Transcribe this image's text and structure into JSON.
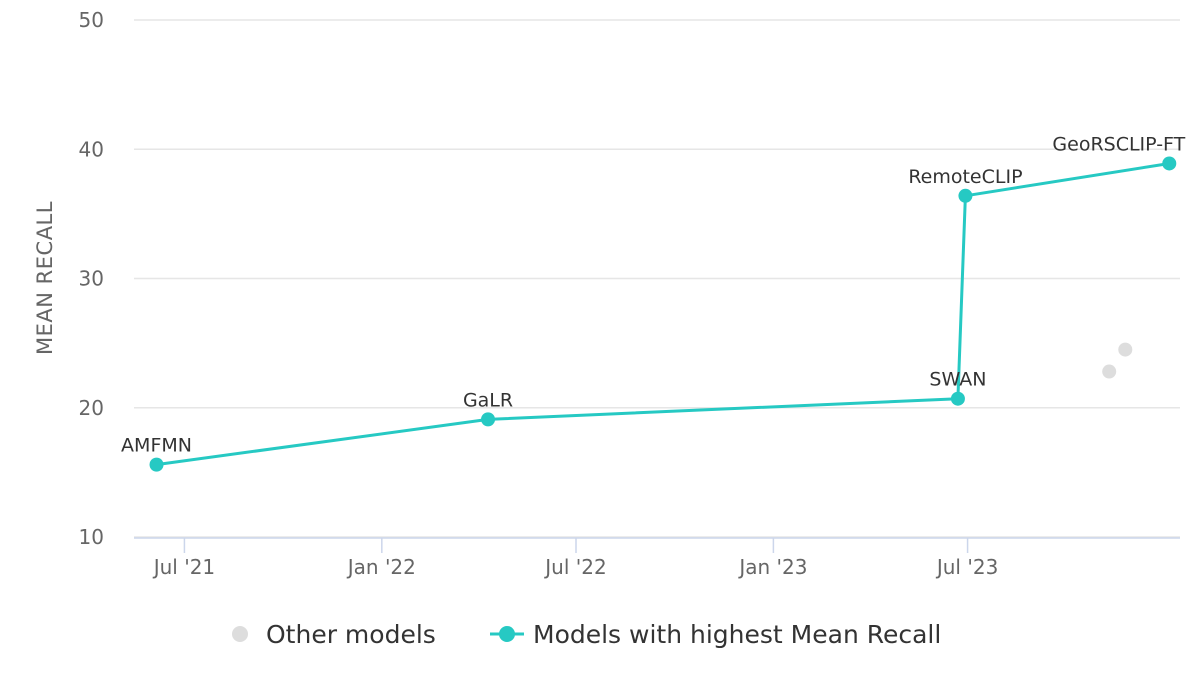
{
  "chart_data": {
    "type": "line",
    "ylabel": "MEAN RECALL",
    "ylim": [
      10,
      50
    ],
    "y_ticks": [
      10,
      20,
      30,
      40,
      50
    ],
    "xlim": [
      "2021-05-15",
      "2024-01-15"
    ],
    "x_ticks": [
      {
        "date": "2021-07-01",
        "label": "Jul '21"
      },
      {
        "date": "2022-01-01",
        "label": "Jan '22"
      },
      {
        "date": "2022-07-01",
        "label": "Jul '22"
      },
      {
        "date": "2023-01-01",
        "label": "Jan '23"
      },
      {
        "date": "2023-07-01",
        "label": "Jul '23"
      }
    ],
    "grid": true,
    "legend_position": "bottom-center",
    "series": [
      {
        "name": "Other models",
        "style": "scatter",
        "color": "#dddddd",
        "points": [
          {
            "x": "2023-11-10",
            "y": 22.8
          },
          {
            "x": "2023-11-25",
            "y": 24.5
          }
        ]
      },
      {
        "name": "Models with highest Mean Recall",
        "style": "line",
        "color": "#26c9c3",
        "points": [
          {
            "x": "2021-06-05",
            "y": 15.6,
            "label": "AMFMN"
          },
          {
            "x": "2022-04-10",
            "y": 19.1,
            "label": "GaLR"
          },
          {
            "x": "2023-06-22",
            "y": 20.7,
            "label": "SWAN"
          },
          {
            "x": "2023-06-29",
            "y": 36.4,
            "label": "RemoteCLIP"
          },
          {
            "x": "2024-01-05",
            "y": 38.9,
            "label": "GeoRSCLIP-FT"
          }
        ]
      }
    ]
  }
}
